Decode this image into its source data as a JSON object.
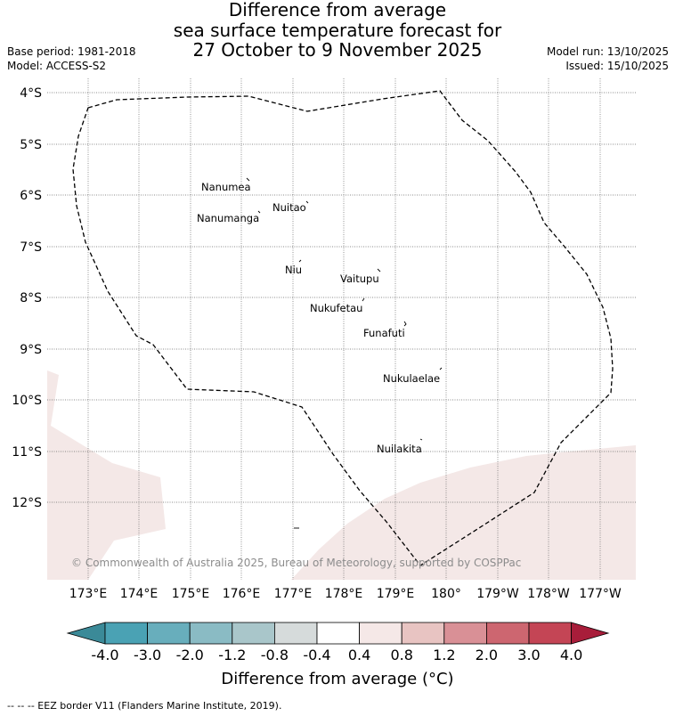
{
  "title": {
    "line1": "Difference from average",
    "line2": "sea surface temperature forecast for",
    "line3": "27 October to 9 November 2025"
  },
  "meta": {
    "base_period": "Base period: 1981-2018",
    "model": "Model: ACCESS-S2",
    "model_run": "Model run: 13/10/2025",
    "issued": "Issued: 15/10/2025"
  },
  "axes": {
    "lat_ticks": [
      "4°S",
      "5°S",
      "6°S",
      "7°S",
      "8°S",
      "9°S",
      "10°S",
      "11°S",
      "12°S"
    ],
    "lon_ticks": [
      "173°E",
      "174°E",
      "175°E",
      "176°E",
      "177°E",
      "178°E",
      "179°E",
      "180°",
      "179°W",
      "178°W",
      "177°W"
    ]
  },
  "places": [
    "Nanumea",
    "Nuitao",
    "Nanumanga",
    "Niu",
    "Vaitupu",
    "Nukufetau",
    "Funafuti",
    "Nukulaelae",
    "Nuilakita"
  ],
  "copyright": "© Commonwealth of Australia 2025, Bureau of Meteorology, supported by COSPPac",
  "colorbar": {
    "labels": [
      "-4.0",
      "-3.0",
      "-2.0",
      "-1.2",
      "-0.8",
      "-0.4",
      "0.4",
      "0.8",
      "1.2",
      "2.0",
      "3.0",
      "4.0"
    ],
    "colors": [
      "#4aa2b4",
      "#68aebc",
      "#8abbc4",
      "#a9c6ca",
      "#d6dbdb",
      "#ffffff",
      "#f5e8e7",
      "#e8c4c2",
      "#d99096",
      "#cd6670",
      "#c44555"
    ],
    "under_color": "#3b8a98",
    "over_color": "#a81d3a",
    "title": "Difference from average (°C)"
  },
  "anomaly_fill_color": "#f4e8e7",
  "footer": "--  --  -- EEZ border V11 (Flanders Marine Institute, 2019)."
}
